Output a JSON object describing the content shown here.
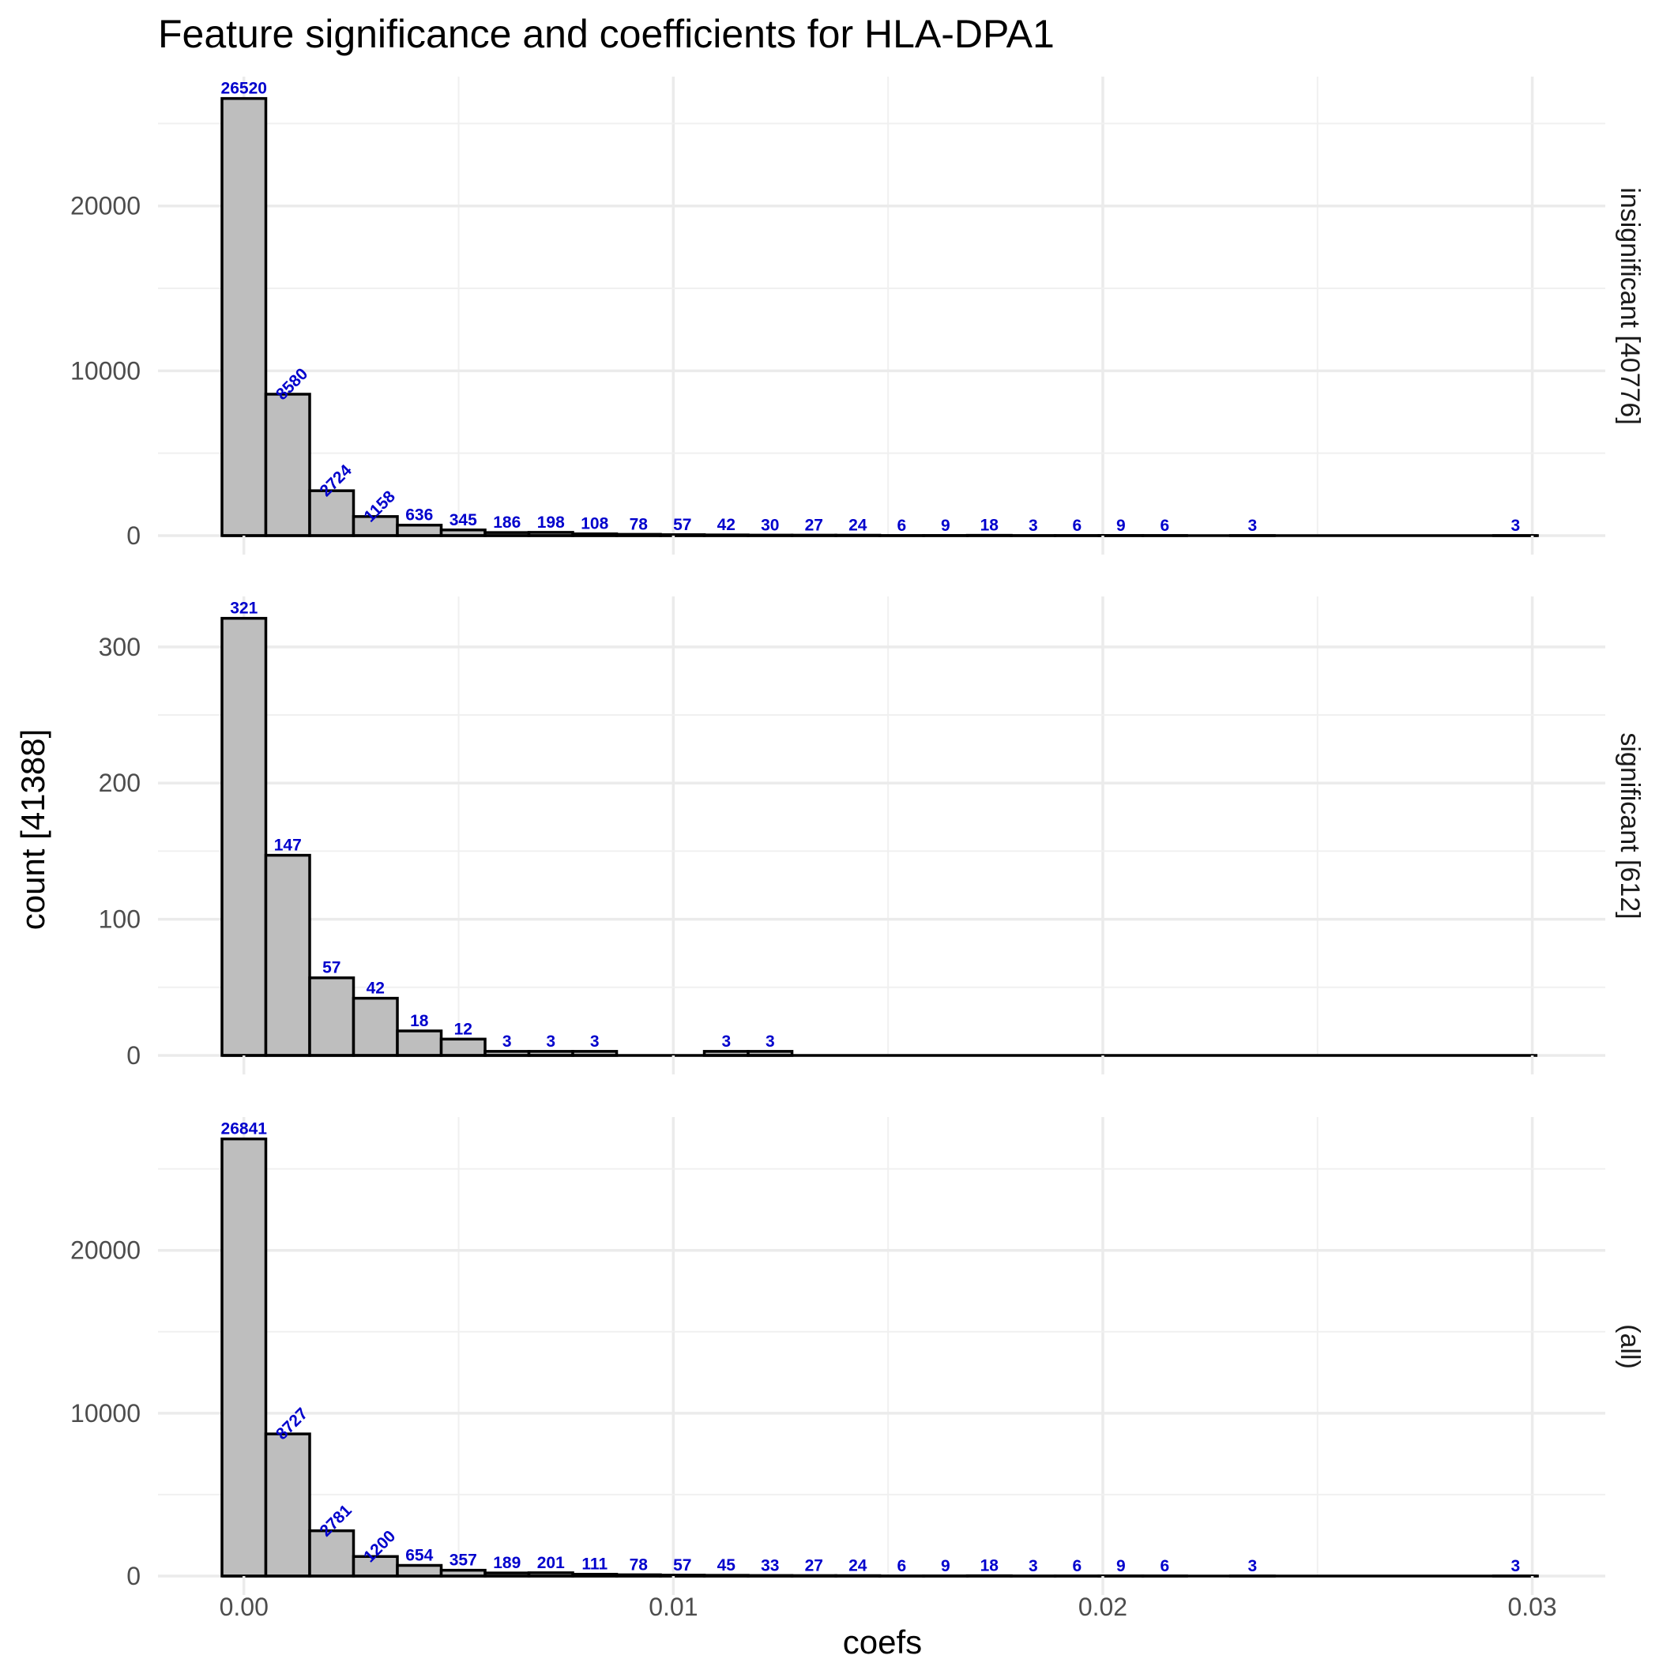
{
  "chart_data": {
    "type": "bar",
    "title": "Feature significance and coefficients for HLA-DPA1",
    "xlabel": "coefs",
    "ylabel": "count [41388]",
    "x_ticks": [
      0,
      0.01,
      0.02,
      0.03
    ],
    "x_tick_labels": [
      "0.00",
      "0.01",
      "0.02",
      "0.03"
    ],
    "xlim": [
      -0.002,
      0.0317
    ],
    "bin_width": 0.001021,
    "bin_start": -0.00051,
    "grid": true,
    "panels": [
      {
        "strip_label": "insignificant [40776]",
        "ylim": [
          0,
          26520
        ],
        "y_ticks": [
          0,
          10000,
          20000
        ],
        "values": [
          26520,
          8580,
          2724,
          1158,
          636,
          345,
          186,
          198,
          108,
          78,
          57,
          42,
          30,
          27,
          24,
          6,
          9,
          18,
          3,
          6,
          9,
          6,
          0,
          3,
          0,
          0,
          0,
          0,
          0,
          3
        ],
        "labels": [
          "26520",
          "8580",
          "2724",
          "1158",
          "636",
          "345",
          "186",
          "198",
          "108",
          "78",
          "57",
          "42",
          "30",
          "27",
          "24",
          "6",
          "9",
          "18",
          "3",
          "6",
          "9",
          "6",
          "",
          "3",
          "",
          "",
          "",
          "",
          "",
          "3"
        ]
      },
      {
        "strip_label": "significant [612]",
        "ylim": [
          0,
          321
        ],
        "y_ticks": [
          0,
          100,
          200,
          300
        ],
        "values": [
          321,
          147,
          57,
          42,
          18,
          12,
          3,
          3,
          3,
          0,
          0,
          3,
          3,
          0,
          0,
          0,
          0,
          0,
          0,
          0,
          0,
          0,
          0,
          0,
          0,
          0,
          0,
          0,
          0,
          0
        ],
        "labels": [
          "321",
          "147",
          "57",
          "42",
          "18",
          "12",
          "3",
          "3",
          "3",
          "",
          "",
          "3",
          "3",
          "",
          "",
          "",
          "",
          "",
          "",
          "",
          "",
          "",
          "",
          "",
          "",
          "",
          "",
          "",
          "",
          ""
        ]
      },
      {
        "strip_label": "(all)",
        "ylim": [
          0,
          26841
        ],
        "y_ticks": [
          0,
          10000,
          20000
        ],
        "values": [
          26841,
          8727,
          2781,
          1200,
          654,
          357,
          189,
          201,
          111,
          78,
          57,
          45,
          33,
          27,
          24,
          6,
          9,
          18,
          3,
          6,
          9,
          6,
          0,
          3,
          0,
          0,
          0,
          0,
          0,
          3
        ],
        "labels": [
          "26841",
          "8727",
          "2781",
          "1200",
          "654",
          "357",
          "189",
          "201",
          "111",
          "78",
          "57",
          "45",
          "33",
          "27",
          "24",
          "6",
          "9",
          "18",
          "3",
          "6",
          "9",
          "6",
          "",
          "3",
          "",
          "",
          "",
          "",
          "",
          "3"
        ]
      }
    ]
  }
}
